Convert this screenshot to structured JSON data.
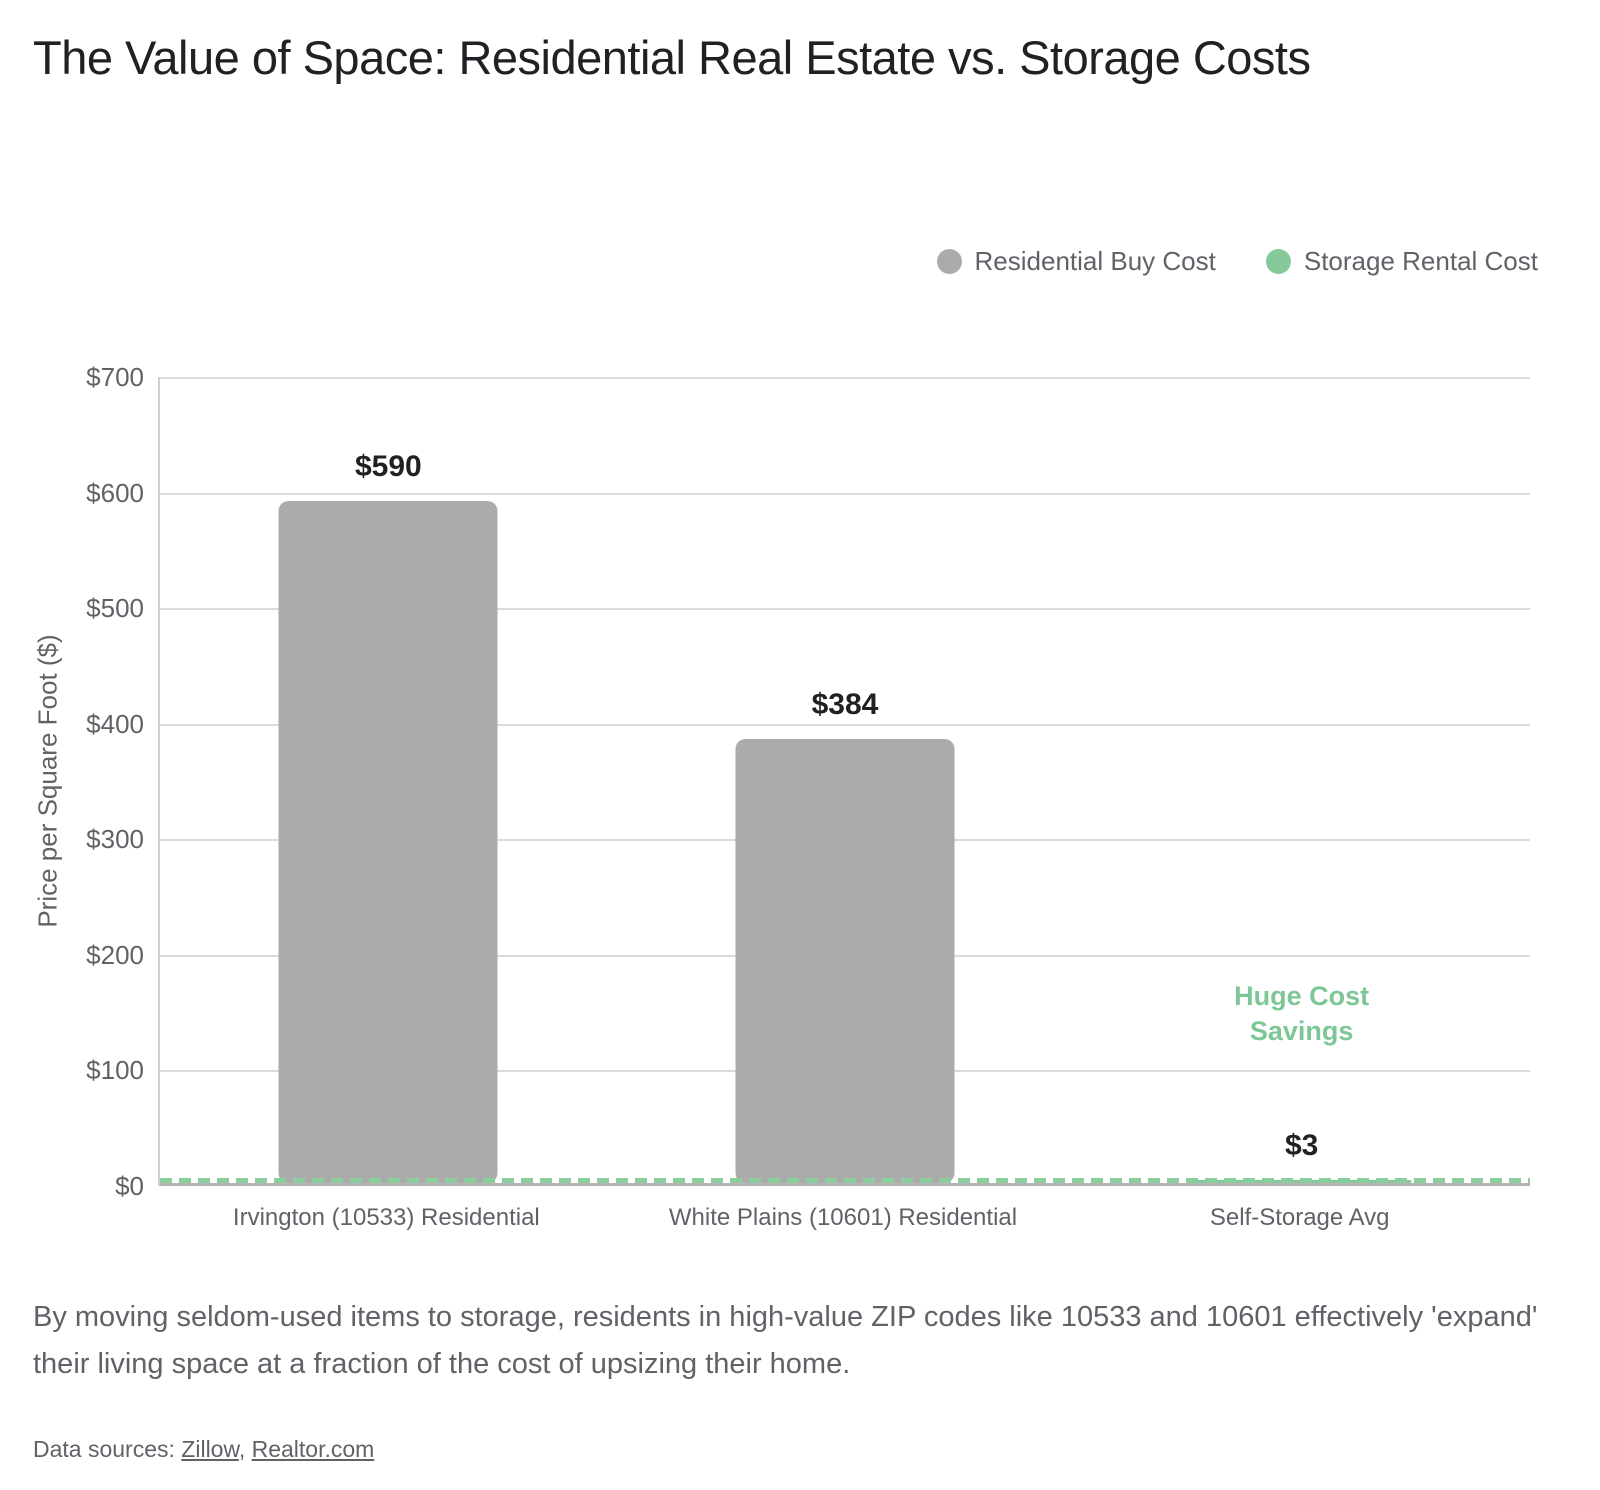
{
  "header": {
    "title": "The Value of Space: Residential Real Estate vs. Storage Costs"
  },
  "legend": {
    "items": [
      {
        "label": "Residential Buy Cost",
        "color": "#ababab"
      },
      {
        "label": "Storage Rental Cost",
        "color": "#85c99a"
      }
    ]
  },
  "chart_data": {
    "type": "bar",
    "title": "The Value of Space: Residential Real Estate vs. Storage Costs",
    "categories": [
      "Irvington (10533) Residential",
      "White Plains (10601) Residential",
      "Self-Storage Avg"
    ],
    "values": [
      590,
      384,
      3
    ],
    "value_labels": [
      "$590",
      "$384",
      "$3"
    ],
    "bar_colors": [
      "#ababab",
      "#ababab",
      "#85c99a"
    ],
    "series": [
      {
        "name": "Residential Buy Cost",
        "color": "#ababab",
        "categories": [
          "Irvington (10533) Residential",
          "White Plains (10601) Residential"
        ],
        "values": [
          590,
          384
        ]
      },
      {
        "name": "Storage Rental Cost",
        "color": "#85c99a",
        "categories": [
          "Self-Storage Avg"
        ],
        "values": [
          3
        ]
      }
    ],
    "xlabel": "",
    "ylabel": "Price per Square Foot ($)",
    "ylim": [
      0,
      700
    ],
    "yticks": [
      0,
      100,
      200,
      300,
      400,
      500,
      600,
      700
    ],
    "ytick_labels": [
      "$0",
      "$100",
      "$200",
      "$300",
      "$400",
      "$500",
      "$600",
      "$700"
    ],
    "grid": true,
    "legend_position": "top-right",
    "reference_line": {
      "value": 3,
      "style": "dashed",
      "color": "#8bce9d"
    },
    "annotation": {
      "text": "Huge Cost\nSavings",
      "color": "#7cc795",
      "near_category": "Self-Storage Avg"
    }
  },
  "footer": {
    "description": "By moving seldom-used items to storage, residents in high-value ZIP codes like 10533 and 10601 effectively 'expand' their living space at a fraction of the cost of upsizing their home.",
    "sources_prefix": "Data sources: ",
    "sources_separator": ", ",
    "sources": [
      {
        "label": "Zillow"
      },
      {
        "label": "Realtor.com"
      }
    ]
  },
  "colors": {
    "title_text": "#202124",
    "axis_text": "#5f6368",
    "gridline": "#dbdbdb",
    "axis_line": "#b5b5b5",
    "bar_gray": "#ababab",
    "bar_green": "#85c99a",
    "dashed_line_green": "#8bce9d",
    "annotation_green": "#7cc795"
  }
}
